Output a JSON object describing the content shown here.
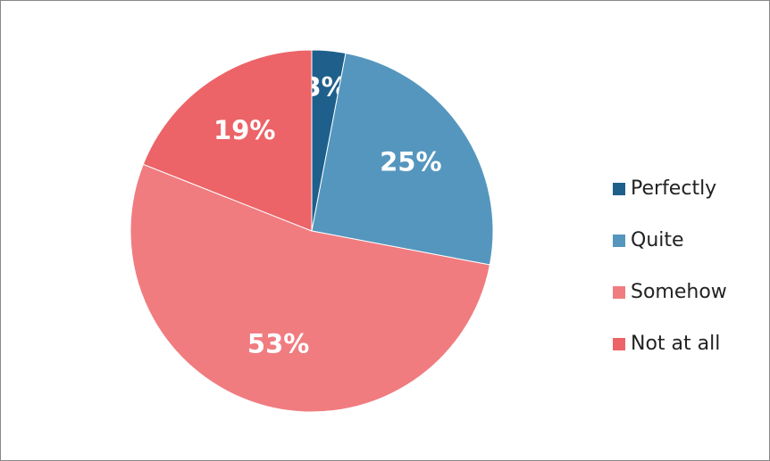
{
  "chart_data": {
    "type": "pie",
    "categories": [
      "Perfectly",
      "Quite",
      "Somehow",
      "Not at all"
    ],
    "values": [
      3,
      25,
      53,
      19
    ],
    "value_labels": [
      "3%",
      "25%",
      "53%",
      "19%"
    ],
    "colors": [
      "#1f5f8b",
      "#5596be",
      "#f07c80",
      "#ec6468"
    ],
    "legend": "right"
  }
}
